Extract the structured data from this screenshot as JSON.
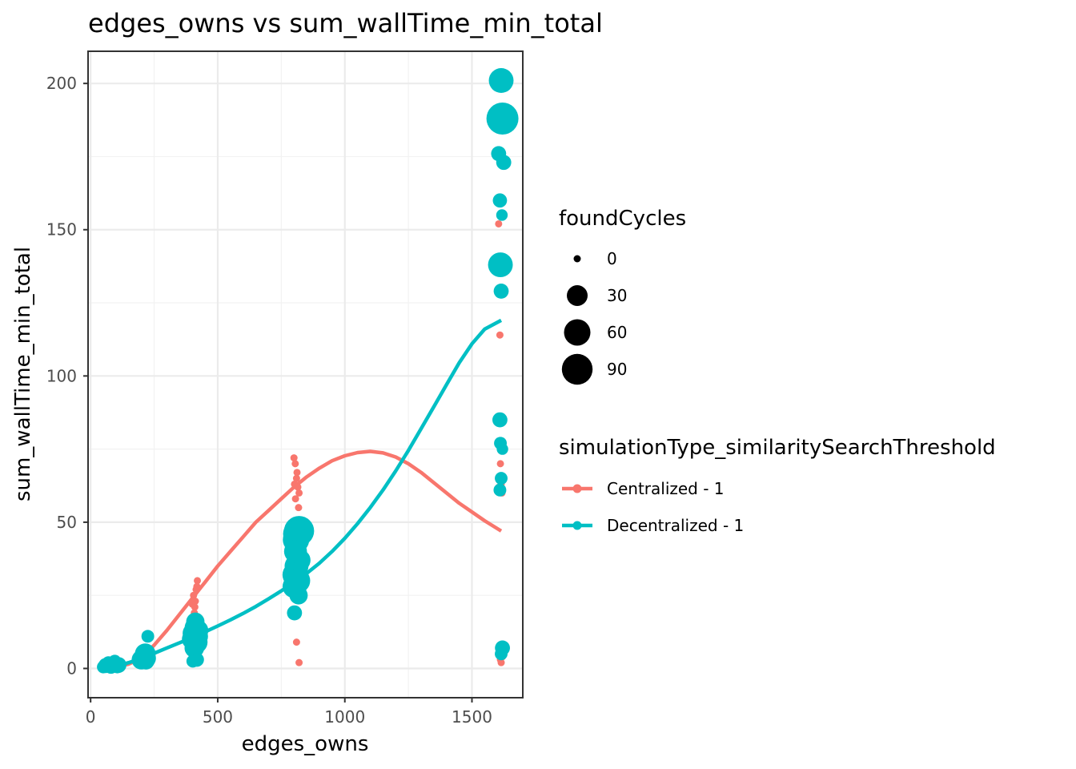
{
  "chart_data": {
    "type": "scatter",
    "title": "edges_owns  vs  sum_wallTime_min_total",
    "xlabel": "edges_owns",
    "ylabel": "sum_wallTime_min_total",
    "xlim": [
      -10,
      1700
    ],
    "ylim": [
      -10,
      211
    ],
    "xticks": [
      0,
      500,
      1000,
      1500
    ],
    "yticks": [
      0,
      50,
      100,
      150,
      200
    ],
    "grid": true,
    "size_legend": {
      "title": "foundCycles",
      "entries": [
        {
          "label": "0",
          "value": 0
        },
        {
          "label": "30",
          "value": 30
        },
        {
          "label": "60",
          "value": 60
        },
        {
          "label": "90",
          "value": 90
        }
      ]
    },
    "color_legend": {
      "title": "simulationType_similaritySearchThreshold",
      "placement": "right",
      "entries": [
        {
          "label": "Centralized - 1",
          "color": "#F8766D"
        },
        {
          "label": "Decentralized - 1",
          "color": "#00BFC4"
        }
      ]
    },
    "series": [
      {
        "name": "Centralized - 1",
        "color": "#F8766D",
        "points": [
          [
            55,
            0.5,
            0
          ],
          [
            65,
            1,
            0
          ],
          [
            80,
            0.8,
            0
          ],
          [
            100,
            1.2,
            0
          ],
          [
            110,
            0.6,
            0
          ],
          [
            205,
            3,
            0
          ],
          [
            215,
            4,
            0
          ],
          [
            225,
            2.5,
            0
          ],
          [
            220,
            5,
            0
          ],
          [
            400,
            22,
            0
          ],
          [
            405,
            25,
            0
          ],
          [
            410,
            21,
            0
          ],
          [
            415,
            27,
            0
          ],
          [
            420,
            30,
            0
          ],
          [
            412,
            23,
            0
          ],
          [
            418,
            28,
            0
          ],
          [
            408,
            19,
            0
          ],
          [
            800,
            72,
            0
          ],
          [
            805,
            70,
            0
          ],
          [
            810,
            65,
            0
          ],
          [
            815,
            62,
            0
          ],
          [
            820,
            60,
            0
          ],
          [
            812,
            67,
            0
          ],
          [
            806,
            58,
            0
          ],
          [
            818,
            55,
            0
          ],
          [
            802,
            63,
            0
          ],
          [
            810,
            9,
            0
          ],
          [
            820,
            2,
            0
          ],
          [
            1605,
            152,
            0
          ],
          [
            1610,
            114,
            0
          ],
          [
            1612,
            70,
            0
          ],
          [
            1615,
            63,
            0
          ],
          [
            1608,
            61,
            0
          ],
          [
            1618,
            60,
            0
          ],
          [
            1606,
            62,
            0
          ],
          [
            1612,
            3,
            0
          ],
          [
            1615,
            2,
            0
          ],
          [
            1620,
            4,
            0
          ]
        ],
        "trend": [
          [
            55,
            0
          ],
          [
            100,
            0.5
          ],
          [
            150,
            1.5
          ],
          [
            200,
            3.5
          ],
          [
            250,
            8
          ],
          [
            300,
            13
          ],
          [
            350,
            18.5
          ],
          [
            400,
            24
          ],
          [
            450,
            29.5
          ],
          [
            500,
            35
          ],
          [
            550,
            40
          ],
          [
            600,
            45
          ],
          [
            650,
            50
          ],
          [
            700,
            54
          ],
          [
            750,
            58
          ],
          [
            800,
            62
          ],
          [
            850,
            65.5
          ],
          [
            900,
            68.5
          ],
          [
            950,
            71
          ],
          [
            1000,
            72.7
          ],
          [
            1050,
            73.8
          ],
          [
            1100,
            74.2
          ],
          [
            1150,
            73.7
          ],
          [
            1200,
            72.3
          ],
          [
            1250,
            70
          ],
          [
            1300,
            67
          ],
          [
            1350,
            63.5
          ],
          [
            1400,
            60
          ],
          [
            1450,
            56.5
          ],
          [
            1500,
            53.5
          ],
          [
            1550,
            50.5
          ],
          [
            1615,
            47
          ]
        ]
      },
      {
        "name": "Decentralized - 1",
        "color": "#00BFC4",
        "points": [
          [
            50,
            0.5,
            5
          ],
          [
            60,
            1,
            10
          ],
          [
            70,
            2,
            5
          ],
          [
            80,
            0.6,
            8
          ],
          [
            95,
            2.5,
            5
          ],
          [
            110,
            1.2,
            12
          ],
          [
            105,
            0.5,
            5
          ],
          [
            200,
            3,
            25
          ],
          [
            210,
            4,
            20
          ],
          [
            215,
            5,
            30
          ],
          [
            220,
            3.5,
            22
          ],
          [
            225,
            11,
            5
          ],
          [
            218,
            2.5,
            15
          ],
          [
            400,
            10,
            30
          ],
          [
            405,
            12,
            35
          ],
          [
            410,
            14,
            28
          ],
          [
            415,
            9,
            40
          ],
          [
            420,
            11,
            32
          ],
          [
            412,
            16,
            20
          ],
          [
            408,
            7,
            25
          ],
          [
            418,
            3,
            8
          ],
          [
            402,
            2.5,
            5
          ],
          [
            422,
            13,
            30
          ],
          [
            800,
            28,
            40
          ],
          [
            805,
            32,
            55
          ],
          [
            810,
            35,
            45
          ],
          [
            815,
            30,
            50
          ],
          [
            820,
            47,
            85
          ],
          [
            812,
            46,
            70
          ],
          [
            808,
            44,
            60
          ],
          [
            818,
            25,
            20
          ],
          [
            802,
            19,
            10
          ],
          [
            822,
            37,
            35
          ],
          [
            806,
            40,
            40
          ],
          [
            1615,
            201,
            50
          ],
          [
            1620,
            188,
            100
          ],
          [
            1605,
            176,
            10
          ],
          [
            1625,
            173,
            10
          ],
          [
            1610,
            160,
            8
          ],
          [
            1618,
            155,
            3
          ],
          [
            1612,
            138,
            50
          ],
          [
            1615,
            129,
            10
          ],
          [
            1610,
            85,
            10
          ],
          [
            1612,
            77,
            5
          ],
          [
            1620,
            75,
            3
          ],
          [
            1615,
            65,
            5
          ],
          [
            1610,
            61,
            5
          ],
          [
            1620,
            7,
            10
          ],
          [
            1615,
            5,
            5
          ]
        ],
        "trend": [
          [
            55,
            0
          ],
          [
            100,
            0.8
          ],
          [
            150,
            2
          ],
          [
            200,
            3.5
          ],
          [
            250,
            5.2
          ],
          [
            300,
            7
          ],
          [
            350,
            8.8
          ],
          [
            400,
            10.6
          ],
          [
            450,
            12.5
          ],
          [
            500,
            14.5
          ],
          [
            550,
            16.6
          ],
          [
            600,
            18.8
          ],
          [
            650,
            21.2
          ],
          [
            700,
            23.8
          ],
          [
            750,
            26.5
          ],
          [
            800,
            29.5
          ],
          [
            850,
            32.5
          ],
          [
            900,
            36
          ],
          [
            950,
            40
          ],
          [
            1000,
            44.5
          ],
          [
            1050,
            49.5
          ],
          [
            1100,
            55
          ],
          [
            1150,
            61
          ],
          [
            1200,
            67.5
          ],
          [
            1250,
            74.5
          ],
          [
            1300,
            82
          ],
          [
            1350,
            89.5
          ],
          [
            1400,
            97
          ],
          [
            1450,
            104.5
          ],
          [
            1500,
            111
          ],
          [
            1550,
            116
          ],
          [
            1615,
            119
          ]
        ]
      }
    ]
  }
}
